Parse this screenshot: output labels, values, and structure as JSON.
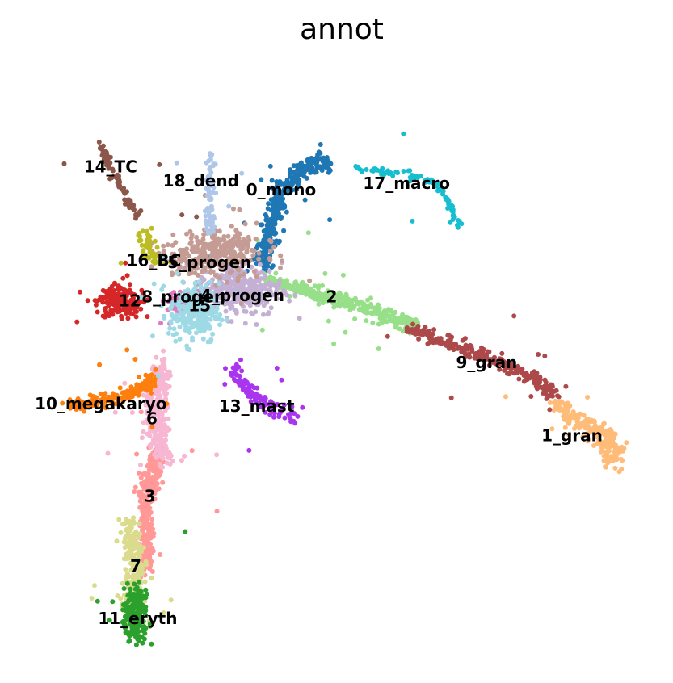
{
  "chart_data": {
    "type": "scatter",
    "title": "annot",
    "xlabel": "",
    "ylabel": "",
    "axes_visible": false,
    "grid": false,
    "legend": "on data",
    "xlim": [
      0,
      100
    ],
    "ylim": [
      0,
      100
    ],
    "clusters": [
      {
        "name": "0_mono",
        "color": "#1f77b4",
        "label_pos": [
          41.5,
          80.8
        ],
        "paths": [
          [
            [
              38.5,
              68.5
            ],
            [
              39.5,
              73
            ],
            [
              40.5,
              77
            ],
            [
              41.5,
              80
            ],
            [
              43,
              82.5
            ],
            [
              45,
              84.5
            ],
            [
              47.5,
              85.5
            ],
            [
              49,
              85
            ]
          ]
        ],
        "blob": [],
        "n": 340,
        "spread": 1.2
      },
      {
        "name": "1_gran",
        "color": "#ffbb78",
        "label_pos": [
          86.5,
          40.1
        ],
        "paths": [
          [
            [
              84,
              45.5
            ],
            [
              86.5,
              43.5
            ],
            [
              89.5,
              41.5
            ],
            [
              91.5,
              40.5
            ],
            [
              93,
              38.5
            ],
            [
              92.5,
              36
            ]
          ]
        ],
        "blob": [],
        "n": 220,
        "spread": 1.4
      },
      {
        "name": "2",
        "color": "#98df8a",
        "label_pos": [
          49.3,
          63.1
        ],
        "paths": [
          [
            [
              39.5,
              66
            ],
            [
              43,
              65
            ],
            [
              47,
              63.5
            ],
            [
              51,
              62.5
            ],
            [
              55,
              61.5
            ],
            [
              59,
              59.5
            ],
            [
              62.5,
              58.5
            ]
          ]
        ],
        "blob": [],
        "n": 300,
        "spread": 1.1
      },
      {
        "name": "3",
        "color": "#ff9896",
        "label_pos": [
          21.2,
          30.1
        ],
        "paths": [
          [
            [
              22.5,
              38
            ],
            [
              21.5,
              34
            ],
            [
              20.8,
              30
            ],
            [
              20.5,
              26
            ],
            [
              20.5,
              22
            ],
            [
              20.5,
              18
            ]
          ]
        ],
        "blob": [],
        "n": 320,
        "spread": 1.1
      },
      {
        "name": "4_progen",
        "color": "#c5b0d5",
        "label_pos": [
          35.5,
          63.3
        ],
        "paths": [],
        "blob": [
          [
            35,
            64.5,
            6,
            4
          ]
        ],
        "n": 320,
        "spread": 0
      },
      {
        "name": "5_progen",
        "color": "#c49c94",
        "label_pos": [
          30.4,
          68.8
        ],
        "paths": [],
        "blob": [
          [
            31,
            70.5,
            6.5,
            3.5
          ]
        ],
        "n": 320,
        "spread": 0
      },
      {
        "name": "6",
        "color": "#f7b6d2",
        "label_pos": [
          21.5,
          42.9
        ],
        "paths": [
          [
            [
              23,
              52
            ],
            [
              22.5,
              48
            ],
            [
              22,
              44
            ],
            [
              22.5,
              40
            ],
            [
              23.5,
              36
            ]
          ]
        ],
        "blob": [],
        "n": 260,
        "spread": 1.4
      },
      {
        "name": "7",
        "color": "#dbdb8d",
        "label_pos": [
          19.0,
          18.5
        ],
        "paths": [
          [
            [
              18,
              26
            ],
            [
              18.5,
              22
            ],
            [
              19,
              18
            ],
            [
              18.5,
              14
            ],
            [
              18,
              10
            ]
          ]
        ],
        "blob": [],
        "n": 230,
        "spread": 1.2
      },
      {
        "name": "8_progen",
        "color": "#e377c2",
        "label_pos": [
          26.4,
          63.1
        ],
        "paths": [],
        "blob": [
          [
            26,
            62,
            2.5,
            2
          ]
        ],
        "n": 60,
        "spread": 0
      },
      {
        "name": "9_gran",
        "color": "#ad494a",
        "label_pos": [
          73.3,
          52.2
        ],
        "paths": [
          [
            [
              61,
              58
            ],
            [
              65,
              56.5
            ],
            [
              69,
              55
            ],
            [
              73,
              53.5
            ],
            [
              77,
              51.5
            ],
            [
              81,
              49.5
            ],
            [
              84,
              47
            ]
          ]
        ],
        "blob": [],
        "n": 260,
        "spread": 0.9
      },
      {
        "name": "10_megakaryo",
        "color": "#ff7f0e",
        "label_pos": [
          13.6,
          45.4
        ],
        "paths": [
          [
            [
              9,
              45.5
            ],
            [
              13,
              45.8
            ],
            [
              16.5,
              46.5
            ],
            [
              19.5,
              48
            ],
            [
              22,
              50
            ]
          ]
        ],
        "blob": [],
        "n": 150,
        "spread": 0.9
      },
      {
        "name": "11_eryth",
        "color": "#2ca02c",
        "label_pos": [
          19.3,
          9.8
        ],
        "paths": [
          [
            [
              19,
              15
            ],
            [
              19,
              12
            ],
            [
              19,
              9
            ],
            [
              19,
              7
            ]
          ]
        ],
        "blob": [],
        "n": 200,
        "spread": 1.5
      },
      {
        "name": "12",
        "color": "#d62728",
        "label_pos": [
          18.1,
          62.4
        ],
        "paths": [],
        "blob": [
          [
            16.5,
            62.5,
            3.5,
            2.4
          ]
        ],
        "n": 170,
        "spread": 0
      },
      {
        "name": "13_mast",
        "color": "#a935ef",
        "label_pos": [
          37.7,
          45.0
        ],
        "paths": [
          [
            [
              34,
              52
            ],
            [
              35,
              49
            ],
            [
              37.5,
              46.5
            ],
            [
              41,
              44.5
            ],
            [
              44,
              43.5
            ]
          ]
        ],
        "blob": [],
        "n": 110,
        "spread": 1.0
      },
      {
        "name": "14_TC",
        "color": "#8c564b",
        "label_pos": [
          15.1,
          84.6
        ],
        "paths": [
          [
            [
              13.5,
              88.5
            ],
            [
              15,
              85
            ],
            [
              16.5,
              82
            ],
            [
              18,
              79
            ],
            [
              19.5,
              76
            ]
          ]
        ],
        "blob": [],
        "n": 90,
        "spread": 0.5
      },
      {
        "name": "15",
        "color": "#9edae5",
        "label_pos": [
          28.9,
          61.6
        ],
        "paths": [],
        "blob": [
          [
            28,
            60.5,
            3.5,
            4.5
          ]
        ],
        "n": 220,
        "spread": 0
      },
      {
        "name": "16_BC",
        "color": "#bcbd22",
        "label_pos": [
          21.8,
          69.1
        ],
        "paths": [
          [
            [
              20,
              74
            ],
            [
              21,
              71.5
            ],
            [
              22,
              69
            ]
          ]
        ],
        "blob": [],
        "n": 45,
        "spread": 1.0
      },
      {
        "name": "17_macro",
        "color": "#17becf",
        "label_pos": [
          60.9,
          81.9
        ],
        "paths": [
          [
            [
              53,
              84.5
            ],
            [
              57,
              84
            ],
            [
              61,
              83.5
            ],
            [
              64.5,
              82.5
            ],
            [
              66.5,
              80.5
            ],
            [
              68,
              77.5
            ],
            [
              69.5,
              74.5
            ]
          ]
        ],
        "blob": [],
        "n": 90,
        "spread": 0.6
      },
      {
        "name": "18_dend",
        "color": "#aec7e8",
        "label_pos": [
          29.1,
          82.3
        ],
        "paths": [
          [
            [
              30.5,
              87.5
            ],
            [
              30.5,
              83
            ],
            [
              30.5,
              78
            ],
            [
              30.5,
              74
            ]
          ]
        ],
        "blob": [],
        "n": 70,
        "spread": 0.6
      }
    ],
    "label_order": [
      "17_macro",
      "0_mono",
      "18_dend",
      "14_TC",
      "16_BC",
      "5_progen",
      "12",
      "4_progen",
      "8_progen",
      "15",
      "2",
      "9_gran",
      "10_megakaryo",
      "13_mast",
      "6",
      "1_gran",
      "3",
      "7",
      "11_eryth"
    ]
  }
}
